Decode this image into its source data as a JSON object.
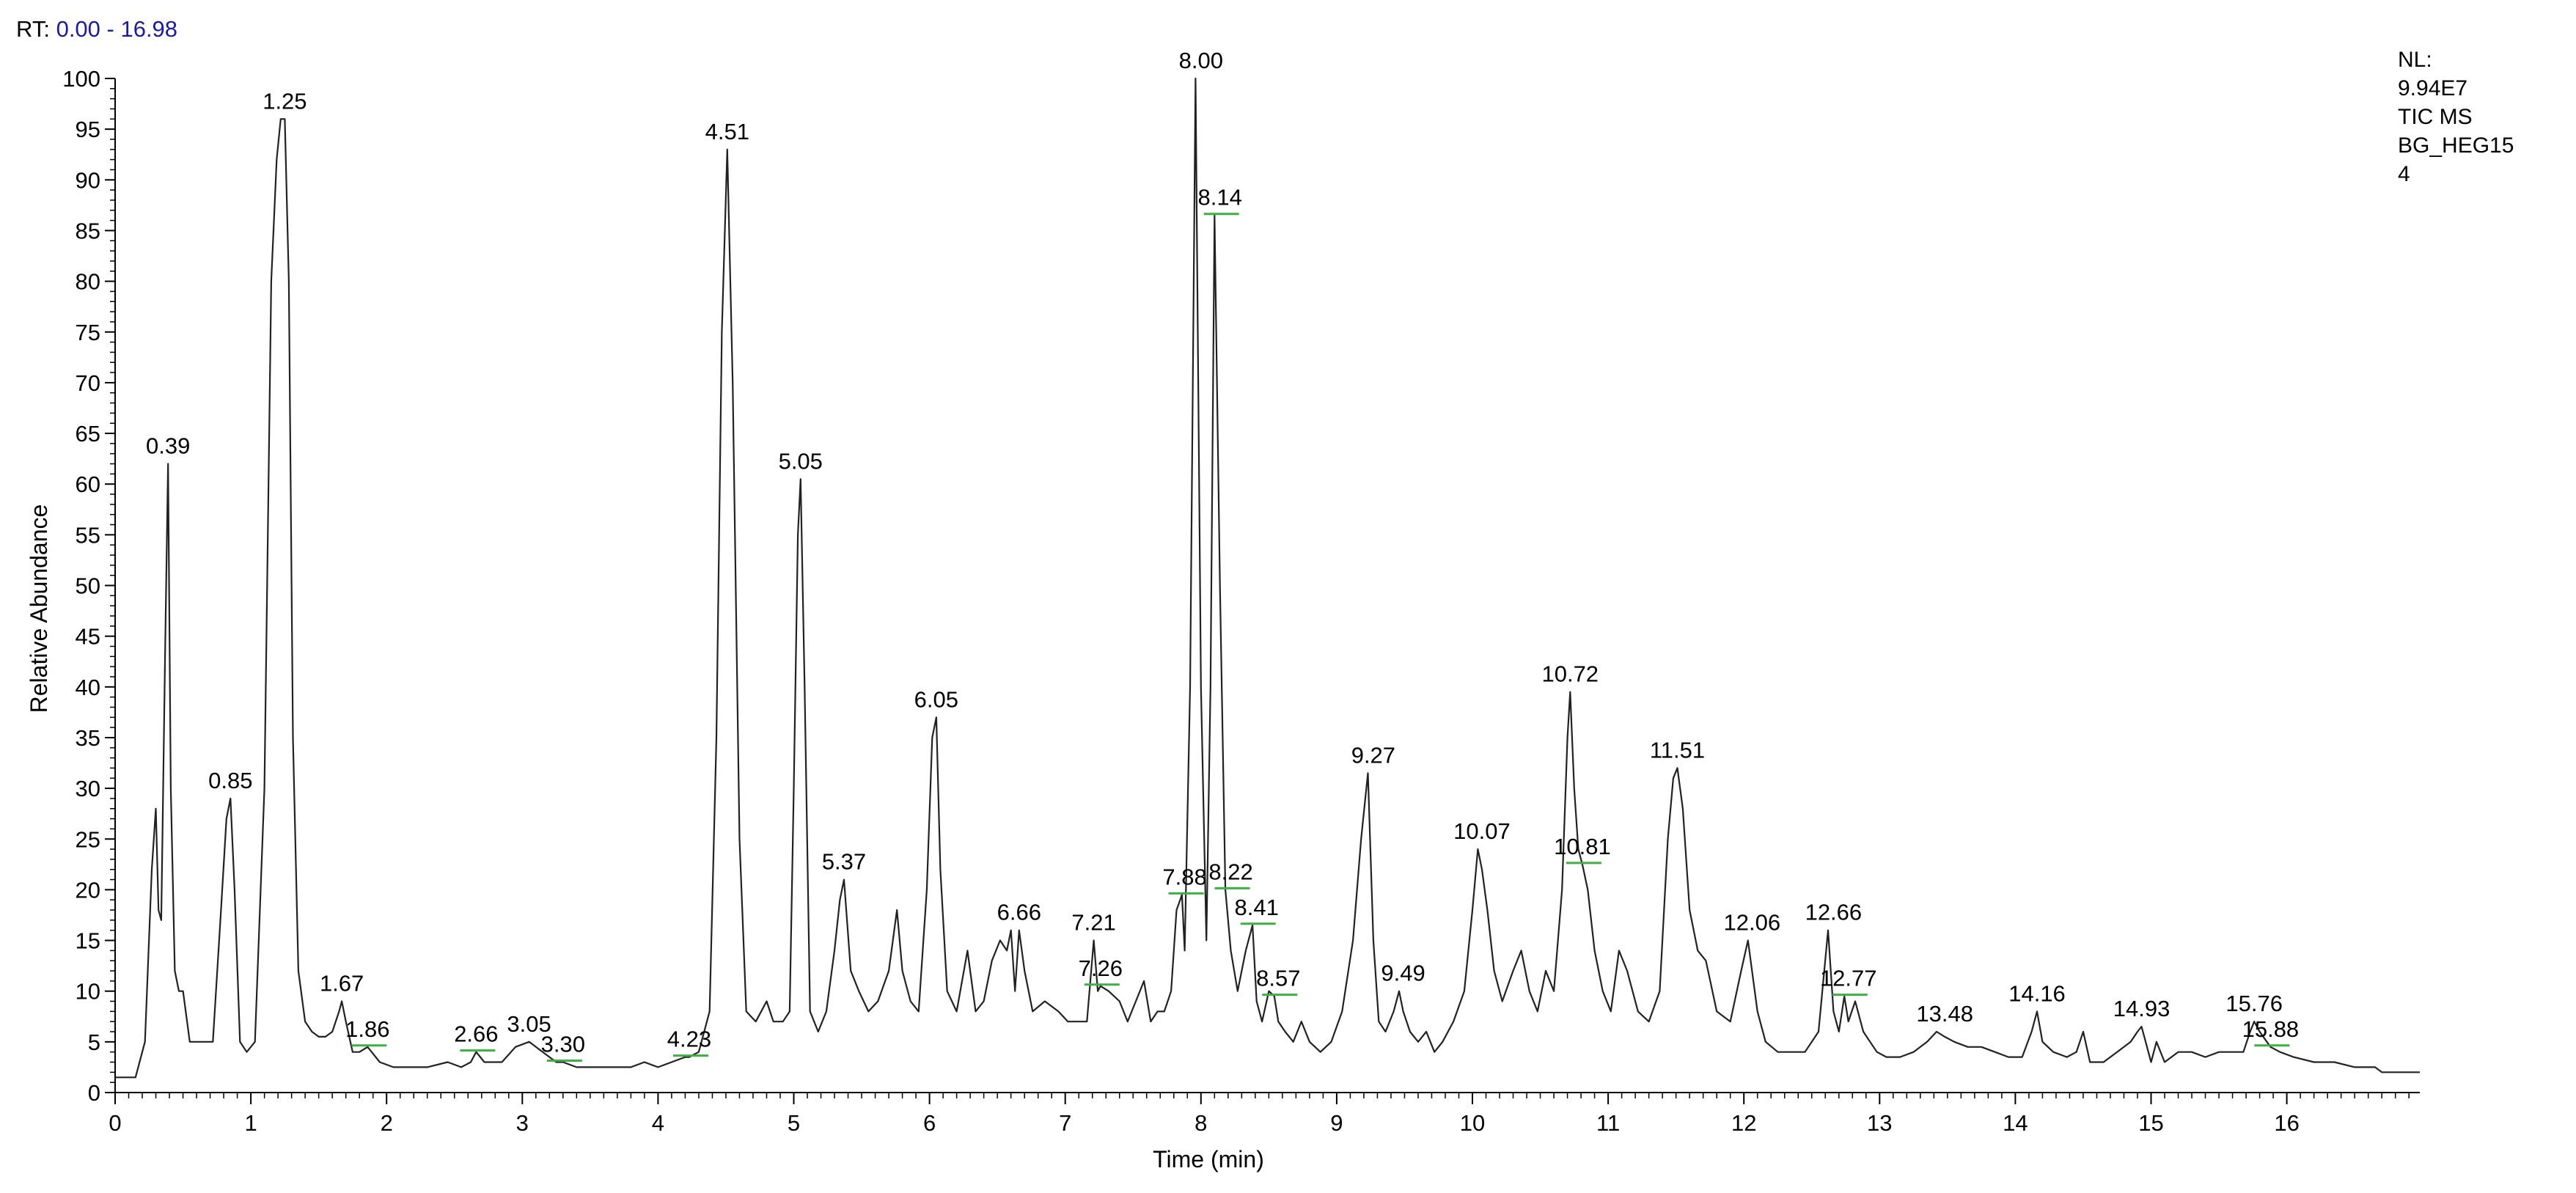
{
  "header": {
    "rt_label": "RT:",
    "rt_range": "0.00 - 16.98"
  },
  "info": {
    "nl_label": "NL:",
    "nl_value": "9.94E7",
    "trace_type": "TIC  MS",
    "sample_name_1": "BG_HEG15",
    "sample_name_2": "4"
  },
  "colors": {
    "trace": "#222222",
    "axis": "#000000",
    "header_value": "#1a1aa8",
    "marker": "#3cb043"
  },
  "chart_data": {
    "type": "line",
    "title": "",
    "xlabel": "Time (min)",
    "ylabel": "Relative Abundance",
    "xlim": [
      0,
      16.98
    ],
    "ylim": [
      0,
      100
    ],
    "x_ticks": [
      0,
      1,
      2,
      3,
      4,
      5,
      6,
      7,
      8,
      9,
      10,
      11,
      12,
      13,
      14,
      15,
      16
    ],
    "y_ticks": [
      0,
      5,
      10,
      15,
      20,
      25,
      30,
      35,
      40,
      45,
      50,
      55,
      60,
      65,
      70,
      75,
      80,
      85,
      90,
      95,
      100
    ],
    "grid": false,
    "peaks": [
      {
        "rt": 0.39,
        "label": "0.39",
        "abundance": 62,
        "marker": false
      },
      {
        "rt": 0.85,
        "label": "0.85",
        "abundance": 29,
        "marker": false
      },
      {
        "rt": 1.25,
        "label": "1.25",
        "abundance": 96,
        "marker": false
      },
      {
        "rt": 1.67,
        "label": "1.67",
        "abundance": 9,
        "marker": false
      },
      {
        "rt": 1.86,
        "label": "1.86",
        "abundance": 4.5,
        "marker": true
      },
      {
        "rt": 2.66,
        "label": "2.66",
        "abundance": 4,
        "marker": true
      },
      {
        "rt": 3.05,
        "label": "3.05",
        "abundance": 5,
        "marker": false
      },
      {
        "rt": 3.3,
        "label": "3.30",
        "abundance": 3,
        "marker": true
      },
      {
        "rt": 4.23,
        "label": "4.23",
        "abundance": 3.5,
        "marker": true
      },
      {
        "rt": 4.51,
        "label": "4.51",
        "abundance": 93,
        "marker": false
      },
      {
        "rt": 5.05,
        "label": "5.05",
        "abundance": 60.5,
        "marker": false
      },
      {
        "rt": 5.37,
        "label": "5.37",
        "abundance": 21,
        "marker": false
      },
      {
        "rt": 6.05,
        "label": "6.05",
        "abundance": 37,
        "marker": false
      },
      {
        "rt": 6.66,
        "label": "6.66",
        "abundance": 16,
        "marker": false
      },
      {
        "rt": 7.21,
        "label": "7.21",
        "abundance": 15,
        "marker": false
      },
      {
        "rt": 7.26,
        "label": "7.26",
        "abundance": 10.5,
        "marker": true
      },
      {
        "rt": 7.88,
        "label": "7.88",
        "abundance": 19.5,
        "marker": true
      },
      {
        "rt": 8.0,
        "label": "8.00",
        "abundance": 100,
        "marker": false
      },
      {
        "rt": 8.14,
        "label": "8.14",
        "abundance": 86.5,
        "marker": true
      },
      {
        "rt": 8.22,
        "label": "8.22",
        "abundance": 20,
        "marker": true
      },
      {
        "rt": 8.41,
        "label": "8.41",
        "abundance": 16.5,
        "marker": true
      },
      {
        "rt": 8.57,
        "label": "8.57",
        "abundance": 9.5,
        "marker": true
      },
      {
        "rt": 9.27,
        "label": "9.27",
        "abundance": 31.5,
        "marker": false
      },
      {
        "rt": 9.49,
        "label": "9.49",
        "abundance": 10,
        "marker": false
      },
      {
        "rt": 10.07,
        "label": "10.07",
        "abundance": 24,
        "marker": false
      },
      {
        "rt": 10.72,
        "label": "10.72",
        "abundance": 39.5,
        "marker": false
      },
      {
        "rt": 10.81,
        "label": "10.81",
        "abundance": 22.5,
        "marker": true
      },
      {
        "rt": 11.51,
        "label": "11.51",
        "abundance": 32,
        "marker": false
      },
      {
        "rt": 12.06,
        "label": "12.06",
        "abundance": 15,
        "marker": false
      },
      {
        "rt": 12.66,
        "label": "12.66",
        "abundance": 16,
        "marker": false
      },
      {
        "rt": 12.77,
        "label": "12.77",
        "abundance": 9.5,
        "marker": true
      },
      {
        "rt": 13.48,
        "label": "13.48",
        "abundance": 6,
        "marker": false
      },
      {
        "rt": 14.16,
        "label": "14.16",
        "abundance": 8,
        "marker": false
      },
      {
        "rt": 14.93,
        "label": "14.93",
        "abundance": 6.5,
        "marker": false
      },
      {
        "rt": 15.76,
        "label": "15.76",
        "abundance": 7,
        "marker": false
      },
      {
        "rt": 15.88,
        "label": "15.88",
        "abundance": 4.5,
        "marker": true
      }
    ],
    "series": [
      {
        "x": [
          0,
          0.15,
          0.22,
          0.27,
          0.3,
          0.32,
          0.34,
          0.37,
          0.39,
          0.41,
          0.44,
          0.47,
          0.5,
          0.55,
          0.6,
          0.65,
          0.72,
          0.78,
          0.82,
          0.85,
          0.88,
          0.92,
          0.97,
          1.03,
          1.1,
          1.15,
          1.19,
          1.22,
          1.25,
          1.28,
          1.31,
          1.35,
          1.4,
          1.45,
          1.5,
          1.55,
          1.6,
          1.65,
          1.67,
          1.7,
          1.75,
          1.8,
          1.86,
          1.95,
          2.05,
          2.15,
          2.3,
          2.45,
          2.55,
          2.62,
          2.66,
          2.72,
          2.85,
          2.95,
          3.05,
          3.15,
          3.25,
          3.3,
          3.4,
          3.55,
          3.7,
          3.8,
          3.9,
          4.0,
          4.1,
          4.2,
          4.23,
          4.3,
          4.38,
          4.43,
          4.47,
          4.51,
          4.55,
          4.6,
          4.65,
          4.72,
          4.8,
          4.85,
          4.92,
          4.97,
          5.0,
          5.03,
          5.05,
          5.08,
          5.12,
          5.18,
          5.24,
          5.3,
          5.34,
          5.37,
          5.42,
          5.48,
          5.55,
          5.62,
          5.7,
          5.76,
          5.8,
          5.86,
          5.92,
          5.98,
          6.02,
          6.05,
          6.08,
          6.13,
          6.2,
          6.28,
          6.34,
          6.4,
          6.46,
          6.52,
          6.57,
          6.6,
          6.63,
          6.66,
          6.7,
          6.76,
          6.85,
          6.95,
          7.02,
          7.1,
          7.16,
          7.21,
          7.24,
          7.26,
          7.32,
          7.4,
          7.46,
          7.52,
          7.58,
          7.63,
          7.68,
          7.73,
          7.78,
          7.82,
          7.86,
          7.88,
          7.92,
          7.96,
          8.0,
          8.04,
          8.07,
          8.1,
          8.14,
          8.18,
          8.22,
          8.27,
          8.33,
          8.38,
          8.41,
          8.45,
          8.5,
          8.54,
          8.57,
          8.62,
          8.68,
          8.74,
          8.8,
          8.88,
          8.96,
          9.04,
          9.12,
          9.18,
          9.23,
          9.27,
          9.31,
          9.36,
          9.42,
          9.46,
          9.49,
          9.54,
          9.6,
          9.66,
          9.72,
          9.78,
          9.86,
          9.94,
          10.0,
          10.04,
          10.07,
          10.11,
          10.16,
          10.22,
          10.3,
          10.36,
          10.42,
          10.48,
          10.54,
          10.6,
          10.66,
          10.7,
          10.72,
          10.75,
          10.78,
          10.81,
          10.85,
          10.9,
          10.96,
          11.02,
          11.08,
          11.14,
          11.22,
          11.3,
          11.38,
          11.44,
          11.48,
          11.51,
          11.55,
          11.6,
          11.66,
          11.72,
          11.8,
          11.9,
          11.98,
          12.03,
          12.06,
          12.1,
          12.16,
          12.25,
          12.35,
          12.45,
          12.55,
          12.62,
          12.66,
          12.7,
          12.74,
          12.77,
          12.82,
          12.88,
          12.93,
          12.98,
          13.05,
          13.15,
          13.25,
          13.35,
          13.42,
          13.48,
          13.55,
          13.65,
          13.75,
          13.85,
          13.95,
          14.05,
          14.12,
          14.16,
          14.2,
          14.28,
          14.38,
          14.45,
          14.5,
          14.55,
          14.65,
          14.75,
          14.85,
          14.9,
          14.93,
          14.96,
          15.0,
          15.04,
          15.1,
          15.2,
          15.3,
          15.4,
          15.5,
          15.6,
          15.68,
          15.73,
          15.76,
          15.8,
          15.88,
          15.95,
          16.05,
          16.2,
          16.35,
          16.5,
          16.6,
          16.65,
          16.7,
          16.8,
          16.98
        ],
        "y": [
          1.5,
          1.5,
          5,
          22,
          28,
          18,
          17,
          45,
          62,
          30,
          12,
          10,
          10,
          5,
          5,
          5,
          5,
          18,
          27,
          29,
          20,
          5,
          4,
          5,
          30,
          80,
          92,
          96,
          96,
          80,
          35,
          12,
          7,
          6,
          5.5,
          5.5,
          6,
          8,
          9,
          7,
          4,
          4,
          4.5,
          3,
          2.5,
          2.5,
          2.5,
          3,
          2.5,
          3,
          4,
          3,
          3,
          4.5,
          5,
          4,
          3,
          3,
          2.5,
          2.5,
          2.5,
          2.5,
          3,
          2.5,
          3,
          3.5,
          3.5,
          4,
          8,
          35,
          75,
          93,
          70,
          25,
          8,
          7,
          9,
          7,
          7,
          8,
          30,
          55,
          60.5,
          40,
          8,
          6,
          8,
          14,
          19,
          21,
          12,
          10,
          8,
          9,
          12,
          18,
          12,
          9,
          8,
          20,
          35,
          37,
          22,
          10,
          8,
          14,
          8,
          9,
          13,
          15,
          14,
          16,
          10,
          16,
          12,
          8,
          9,
          8,
          7,
          7,
          7,
          15,
          10,
          10.5,
          10,
          9,
          7,
          9,
          11,
          7,
          8,
          8,
          10,
          18,
          19.5,
          14,
          40,
          100,
          40,
          15,
          40,
          86.5,
          50,
          20,
          14,
          10,
          14,
          16.5,
          9,
          7,
          10,
          9.5,
          7,
          6,
          5,
          7,
          5,
          4,
          5,
          8,
          15,
          25,
          31.5,
          15,
          7,
          6,
          8,
          10,
          8,
          6,
          5,
          6,
          4,
          5,
          7,
          10,
          18,
          24,
          22,
          18,
          12,
          9,
          12,
          14,
          10,
          8,
          12,
          10,
          20,
          35,
          39.5,
          30,
          24,
          22.5,
          20,
          14,
          10,
          8,
          14,
          12,
          8,
          7,
          10,
          25,
          31,
          32,
          28,
          18,
          14,
          13,
          8,
          7,
          12,
          15,
          12,
          8,
          5,
          4,
          4,
          4,
          6,
          16,
          8,
          6,
          9.5,
          7,
          9,
          6,
          5,
          4,
          3.5,
          3.5,
          4,
          5,
          6,
          5.5,
          5,
          4.5,
          4.5,
          4,
          3.5,
          3.5,
          6,
          8,
          5,
          4,
          3.5,
          4,
          6,
          3,
          3,
          4,
          5,
          6,
          6.5,
          5,
          3,
          5,
          3,
          4,
          4,
          3.5,
          4,
          4,
          4,
          6,
          7,
          6,
          4.5,
          4,
          3.5,
          3,
          3,
          2.5,
          2.5,
          2.5,
          2,
          2,
          2
        ]
      }
    ]
  }
}
